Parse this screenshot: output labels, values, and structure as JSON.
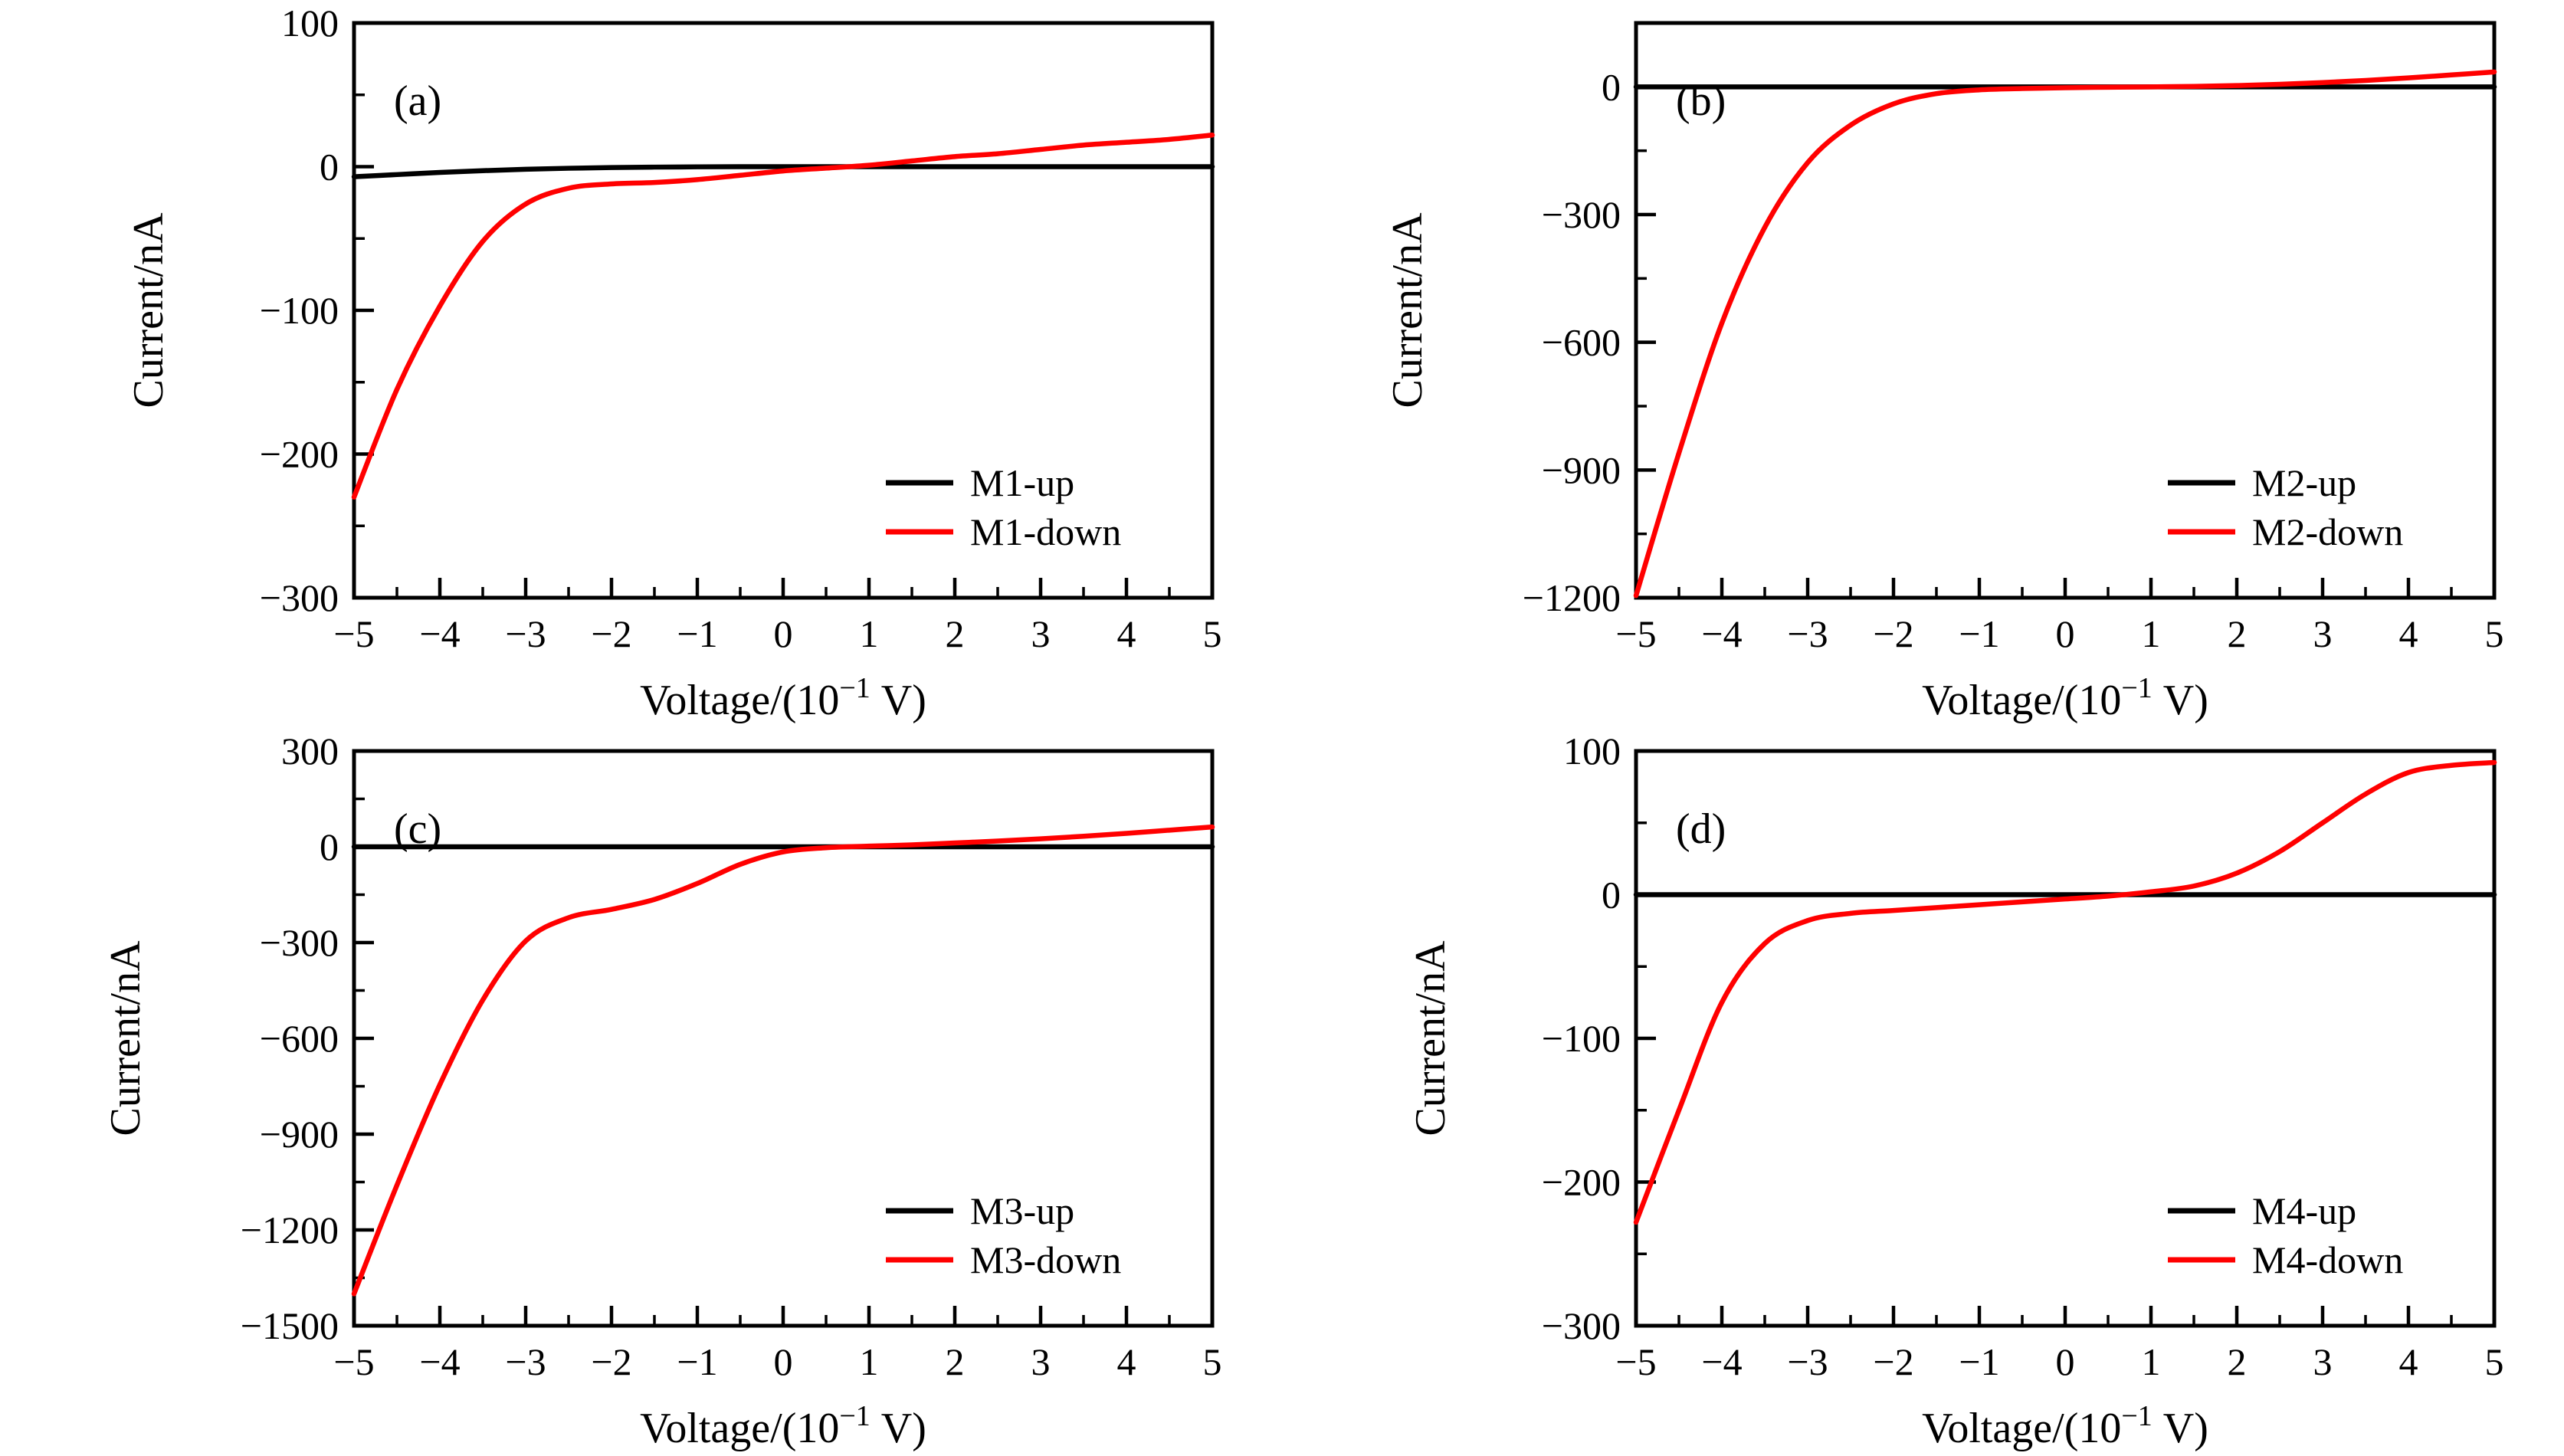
{
  "figure": {
    "background": "#ffffff",
    "curve_red": "#ff0000",
    "curve_black": "#000000",
    "spine_color": "#000000"
  },
  "chart_data": [
    {
      "type": "line",
      "panel_label": "(a)",
      "xlabel_main": "Voltage/(10",
      "xlabel_sup": "−1",
      "xlabel_end": " V)",
      "ylabel": "Current/nA",
      "xlim": [
        -5,
        5
      ],
      "ylim": [
        -300,
        100
      ],
      "xticks_major": [
        -5,
        -4,
        -3,
        -2,
        -1,
        0,
        1,
        2,
        3,
        4,
        5
      ],
      "xtick_minor_step": 0.5,
      "yticks_major": [
        100,
        0,
        -100,
        -200,
        -300
      ],
      "ytick_minor_step": 50,
      "legend": [
        {
          "label": "M1-up",
          "color": "#000000"
        },
        {
          "label": "M1-down",
          "color": "#ff0000"
        }
      ],
      "series": [
        {
          "name": "M1-up",
          "color": "#000000",
          "x": [
            -5,
            -4.5,
            -4,
            -3.5,
            -3,
            -2.5,
            -2,
            -1.5,
            -1,
            -0.5,
            0,
            0.5,
            1,
            1.5,
            2,
            2.5,
            3,
            3.5,
            4,
            4.5,
            5
          ],
          "y": [
            -7,
            -5.5,
            -4,
            -2.8,
            -1.8,
            -1.1,
            -0.6,
            -0.3,
            -0.1,
            0,
            0,
            0,
            0,
            0,
            0,
            0,
            0,
            0,
            0,
            0,
            0
          ]
        },
        {
          "name": "M1-down",
          "color": "#ff0000",
          "x": [
            -5,
            -4.5,
            -4,
            -3.5,
            -3,
            -2.5,
            -2,
            -1.5,
            -1,
            -0.5,
            0,
            0.5,
            1,
            1.5,
            2,
            2.5,
            3,
            3.5,
            4,
            4.5,
            5
          ],
          "y": [
            -230,
            -155,
            -97,
            -52,
            -26,
            -15,
            -12,
            -11,
            -9,
            -6,
            -3,
            -1,
            1,
            4,
            7,
            9,
            12,
            15,
            17,
            19,
            22
          ]
        }
      ]
    },
    {
      "type": "line",
      "panel_label": "(b)",
      "xlabel_main": "Voltage/(10",
      "xlabel_sup": "−1",
      "xlabel_end": " V)",
      "ylabel": "Current/nA",
      "xlim": [
        -5,
        5
      ],
      "ylim": [
        -1200,
        150
      ],
      "xticks_major": [
        -5,
        -4,
        -3,
        -2,
        -1,
        0,
        1,
        2,
        3,
        4,
        5
      ],
      "xtick_minor_step": 0.5,
      "yticks_major": [
        0,
        -300,
        -600,
        -900,
        -1200
      ],
      "ytick_minor_step": 150,
      "legend": [
        {
          "label": "M2-up",
          "color": "#000000"
        },
        {
          "label": "M2-down",
          "color": "#ff0000"
        }
      ],
      "series": [
        {
          "name": "M2-up",
          "color": "#000000",
          "x": [
            -5,
            -4.5,
            -4,
            -3.5,
            -3,
            -2.5,
            -2,
            -1.5,
            -1,
            -0.5,
            0,
            0.5,
            1,
            1.5,
            2,
            2.5,
            3,
            3.5,
            4,
            4.5,
            5
          ],
          "y": [
            0,
            0,
            0,
            0,
            0,
            0,
            0,
            0,
            0,
            0,
            0,
            0,
            0,
            0,
            0,
            0,
            0,
            0,
            0,
            0,
            0
          ]
        },
        {
          "name": "M2-down",
          "color": "#ff0000",
          "x": [
            -5,
            -4.5,
            -4,
            -3.5,
            -3,
            -2.5,
            -2,
            -1.5,
            -1,
            -0.5,
            0,
            0.5,
            1,
            1.5,
            2,
            2.5,
            3,
            3.5,
            4,
            4.5,
            5
          ],
          "y": [
            -1195,
            -860,
            -555,
            -330,
            -178,
            -90,
            -40,
            -16,
            -7,
            -4,
            -2,
            -1,
            0,
            1,
            3,
            6,
            10,
            15,
            21,
            28,
            35
          ]
        }
      ]
    },
    {
      "type": "line",
      "panel_label": "(c)",
      "xlabel_main": "Voltage/(10",
      "xlabel_sup": "−1",
      "xlabel_end": " V)",
      "ylabel": "Current/nA",
      "xlim": [
        -5,
        5
      ],
      "ylim": [
        -1500,
        300
      ],
      "xticks_major": [
        -5,
        -4,
        -3,
        -2,
        -1,
        0,
        1,
        2,
        3,
        4,
        5
      ],
      "xtick_minor_step": 0.5,
      "yticks_major": [
        300,
        0,
        -300,
        -600,
        -900,
        -1200,
        -1500
      ],
      "ytick_minor_step": 150,
      "legend": [
        {
          "label": "M3-up",
          "color": "#000000"
        },
        {
          "label": "M3-down",
          "color": "#ff0000"
        }
      ],
      "series": [
        {
          "name": "M3-up",
          "color": "#000000",
          "x": [
            -5,
            -4.5,
            -4,
            -3.5,
            -3,
            -2.5,
            -2,
            -1.5,
            -1,
            -0.5,
            0,
            0.5,
            1,
            1.5,
            2,
            2.5,
            3,
            3.5,
            4,
            4.5,
            5
          ],
          "y": [
            0,
            0,
            0,
            0,
            0,
            0,
            0,
            0,
            0,
            0,
            0,
            0,
            0,
            0,
            0,
            0,
            0,
            0,
            0,
            0,
            0
          ]
        },
        {
          "name": "M3-down",
          "color": "#ff0000",
          "x": [
            -5,
            -4.5,
            -4,
            -3.5,
            -3,
            -2.5,
            -2,
            -1.5,
            -1,
            -0.5,
            0,
            0.5,
            1,
            1.5,
            2,
            2.5,
            3,
            3.5,
            4,
            4.5,
            5
          ],
          "y": [
            -1400,
            -1060,
            -745,
            -480,
            -295,
            -222,
            -196,
            -165,
            -115,
            -55,
            -16,
            -3,
            2,
            6,
            12,
            18,
            25,
            33,
            42,
            52,
            62
          ]
        }
      ]
    },
    {
      "type": "line",
      "panel_label": "(d)",
      "xlabel_main": "Voltage/(10",
      "xlabel_sup": "−1",
      "xlabel_end": " V)",
      "ylabel": "Current/nA",
      "xlim": [
        -5,
        5
      ],
      "ylim": [
        -300,
        100
      ],
      "xticks_major": [
        -5,
        -4,
        -3,
        -2,
        -1,
        0,
        1,
        2,
        3,
        4,
        5
      ],
      "xtick_minor_step": 0.5,
      "yticks_major": [
        100,
        0,
        -100,
        -200,
        -300
      ],
      "ytick_minor_step": 50,
      "legend": [
        {
          "label": "M4-up",
          "color": "#000000"
        },
        {
          "label": "M4-down",
          "color": "#ff0000"
        }
      ],
      "series": [
        {
          "name": "M4-up",
          "color": "#000000",
          "x": [
            -5,
            -4.5,
            -4,
            -3.5,
            -3,
            -2.5,
            -2,
            -1.5,
            -1,
            -0.5,
            0,
            0.5,
            1,
            1.5,
            2,
            2.5,
            3,
            3.5,
            4,
            4.5,
            5
          ],
          "y": [
            0,
            0,
            0,
            0,
            0,
            0,
            0,
            0,
            0,
            0,
            0,
            0,
            0,
            0,
            0,
            0,
            0,
            0,
            0,
            0,
            0
          ]
        },
        {
          "name": "M4-down",
          "color": "#ff0000",
          "x": [
            -5,
            -4.5,
            -4,
            -3.5,
            -3,
            -2.5,
            -2,
            -1.5,
            -1,
            -0.5,
            0,
            0.5,
            1,
            1.5,
            2,
            2.5,
            3,
            3.5,
            4,
            4.5,
            5
          ],
          "y": [
            -228,
            -150,
            -75,
            -34,
            -18,
            -13,
            -11,
            -9,
            -7,
            -5,
            -3,
            -1,
            2,
            6,
            15,
            30,
            50,
            70,
            85,
            90,
            92
          ]
        }
      ]
    }
  ]
}
